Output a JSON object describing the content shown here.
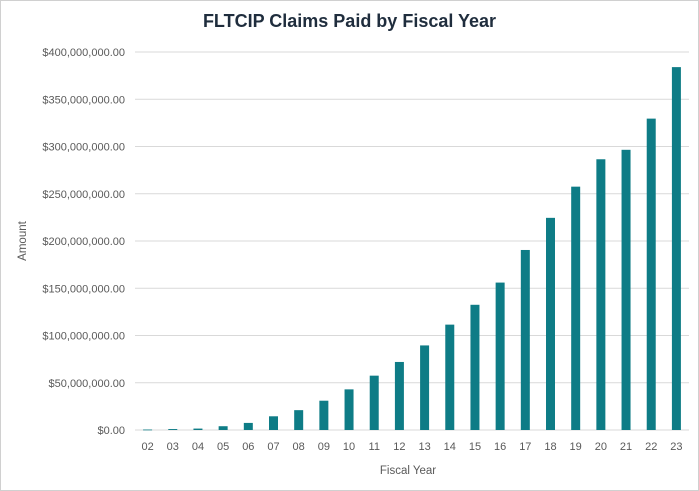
{
  "chart_data": {
    "type": "bar",
    "title": "FLTCIP Claims Paid by Fiscal Year",
    "xlabel": "Fiscal Year",
    "ylabel": "Amount",
    "ylim": [
      0,
      400000000
    ],
    "y_ticks": [
      0,
      50000000,
      100000000,
      150000000,
      200000000,
      250000000,
      300000000,
      350000000,
      400000000
    ],
    "y_tick_labels": [
      "$0.00",
      "$50,000,000.00",
      "$100,000,000.00",
      "$150,000,000.00",
      "$200,000,000.00",
      "$250,000,000.00",
      "$300,000,000.00",
      "$350,000,000.00",
      "$400,000,000.00"
    ],
    "categories": [
      "02",
      "03",
      "04",
      "05",
      "06",
      "07",
      "08",
      "09",
      "10",
      "11",
      "12",
      "13",
      "14",
      "15",
      "16",
      "17",
      "18",
      "19",
      "20",
      "21",
      "22",
      "23"
    ],
    "values": [
      500000,
      1000000,
      1500000,
      4000000,
      7500000,
      14500000,
      21000000,
      31000000,
      43000000,
      57500000,
      72000000,
      89500000,
      111500000,
      132500000,
      156000000,
      190500000,
      224500000,
      257500000,
      286500000,
      296500000,
      329500000,
      384000000
    ],
    "grid": true,
    "legend": "none",
    "bar_color": "#0e7c86",
    "grid_color": "#d9d9d9"
  }
}
